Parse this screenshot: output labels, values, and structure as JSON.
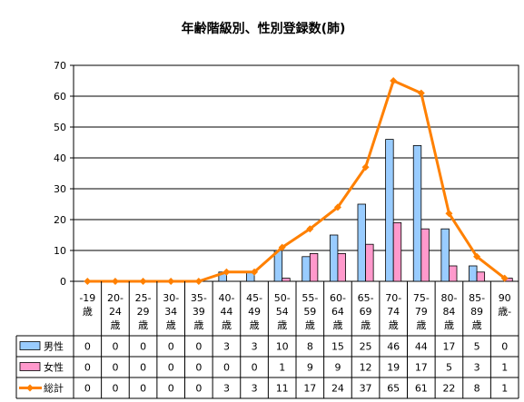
{
  "chart_data": {
    "type": "bar",
    "title": "年齢階級別、性別登録数(肺)",
    "categories": [
      [
        "-19",
        "歳"
      ],
      [
        "20-",
        "24",
        "歳"
      ],
      [
        "25-",
        "29",
        "歳"
      ],
      [
        "30-",
        "34",
        "歳"
      ],
      [
        "35-",
        "39",
        "歳"
      ],
      [
        "40-",
        "44",
        "歳"
      ],
      [
        "45-",
        "49",
        "歳"
      ],
      [
        "50-",
        "54",
        "歳"
      ],
      [
        "55-",
        "59",
        "歳"
      ],
      [
        "60-",
        "64",
        "歳"
      ],
      [
        "65-",
        "69",
        "歳"
      ],
      [
        "70-",
        "74",
        "歳"
      ],
      [
        "75-",
        "79",
        "歳"
      ],
      [
        "80-",
        "84",
        "歳"
      ],
      [
        "85-",
        "89",
        "歳"
      ],
      [
        "90",
        "歳-"
      ]
    ],
    "series": [
      {
        "name": "男性",
        "kind": "bar",
        "color": "#99CCFF",
        "values": [
          0,
          0,
          0,
          0,
          0,
          3,
          3,
          10,
          8,
          15,
          25,
          46,
          44,
          17,
          5,
          0
        ]
      },
      {
        "name": "女性",
        "kind": "bar",
        "color": "#FF99CC",
        "values": [
          0,
          0,
          0,
          0,
          0,
          0,
          0,
          1,
          9,
          9,
          12,
          19,
          17,
          5,
          3,
          1
        ]
      },
      {
        "name": "総計",
        "kind": "line",
        "color": "#FF8000",
        "values": [
          0,
          0,
          0,
          0,
          0,
          3,
          3,
          11,
          17,
          24,
          37,
          65,
          61,
          22,
          8,
          1
        ]
      }
    ],
    "ylim": [
      0,
      70
    ],
    "yticks": [
      0,
      10,
      20,
      30,
      40,
      50,
      60,
      70
    ],
    "grid": true,
    "legend": "data-table-left"
  }
}
